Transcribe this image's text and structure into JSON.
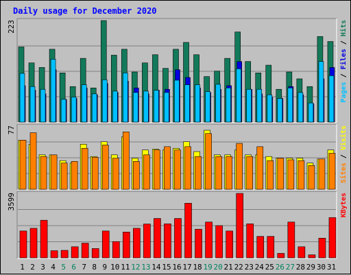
{
  "chart_data": {
    "type": "bar",
    "title": "Daily usage for December 2020",
    "categories": [
      "1",
      "2",
      "3",
      "4",
      "5",
      "6",
      "7",
      "8",
      "9",
      "10",
      "11",
      "12",
      "13",
      "14",
      "15",
      "16",
      "17",
      "18",
      "19",
      "20",
      "21",
      "22",
      "23",
      "24",
      "25",
      "26",
      "27",
      "28",
      "29",
      "30",
      "31"
    ],
    "weekend_days": [
      "5",
      "6",
      "12",
      "13",
      "19",
      "20",
      "26",
      "27"
    ],
    "panels": [
      {
        "name": "hits-files-pages",
        "ymax_label": "223",
        "ymax": 223,
        "label_parts": [
          "Pages",
          "Files",
          "Hits"
        ],
        "series": [
          {
            "name": "Hits",
            "color": "#127a5a",
            "values": [
              165,
              130,
              120,
              160,
              108,
              78,
              140,
              75,
              223,
              147,
              160,
              110,
              130,
              148,
              118,
              160,
              175,
              148,
              100,
              112,
              140,
              198,
              133,
              108,
              125,
              72,
              110,
              95,
              78,
              188,
              177
            ]
          },
          {
            "name": "Files",
            "color": "#0000e0",
            "values": [
              80,
              70,
              62,
              115,
              50,
              52,
              75,
              60,
              85,
              65,
              90,
              75,
              62,
              70,
              72,
              115,
              98,
              75,
              65,
              72,
              80,
              133,
              72,
              62,
              55,
              52,
              78,
              60,
              40,
              95,
              120
            ]
          },
          {
            "name": "Pages",
            "color": "#00c0ff",
            "values": [
              107,
              78,
              72,
              138,
              50,
              55,
              82,
              62,
              93,
              68,
              108,
              65,
              68,
              70,
              65,
              92,
              82,
              82,
              67,
              83,
              75,
              117,
              72,
              72,
              60,
              52,
              75,
              65,
              42,
              133,
              102
            ]
          }
        ]
      },
      {
        "name": "visits-sites",
        "ymax_label": "77",
        "ymax": 77,
        "label_parts": [
          "Sites",
          "Visits"
        ],
        "series": [
          {
            "name": "Visits",
            "color": "#ffff00",
            "values": [
              60,
              55,
              42,
              42,
              35,
              32,
              55,
              40,
              58,
              42,
              64,
              38,
              48,
              49,
              48,
              50,
              58,
              46,
              72,
              42,
              42,
              48,
              42,
              42,
              40,
              38,
              38,
              38,
              32,
              37,
              48
            ]
          },
          {
            "name": "Sites",
            "color": "#ff8000",
            "values": [
              60,
              69,
              40,
              42,
              32,
              34,
              50,
              39,
              54,
              38,
              70,
              34,
              42,
              48,
              52,
              48,
              52,
              40,
              68,
              40,
              40,
              56,
              40,
              52,
              35,
              38,
              36,
              35,
              29,
              37,
              44
            ]
          }
        ]
      },
      {
        "name": "kbytes",
        "ymax_label": "3599",
        "ymax": 3599,
        "label_parts": [
          "KBytes"
        ],
        "series": [
          {
            "name": "KBytes",
            "color": "#ff0000",
            "values": [
              1500,
              1650,
              2100,
              400,
              420,
              620,
              820,
              520,
              1500,
              910,
              1440,
              1650,
              1890,
              2200,
              1900,
              2200,
              3050,
              1600,
              2000,
              1800,
              1500,
              3599,
              1900,
              1200,
              1200,
              250,
              2000,
              620,
              170,
              1100,
              2250
            ]
          }
        ]
      }
    ]
  },
  "colors": {
    "background": "#c0c0c0",
    "title": "#0000ff",
    "axis_text": "#000000",
    "weekend_text": "#00805c",
    "hits": "#127a5a",
    "files": "#0000e0",
    "pages": "#00c0ff",
    "visits": "#ffff00",
    "sites": "#ff8000",
    "kbytes": "#ff0000",
    "separator": "#000000"
  }
}
